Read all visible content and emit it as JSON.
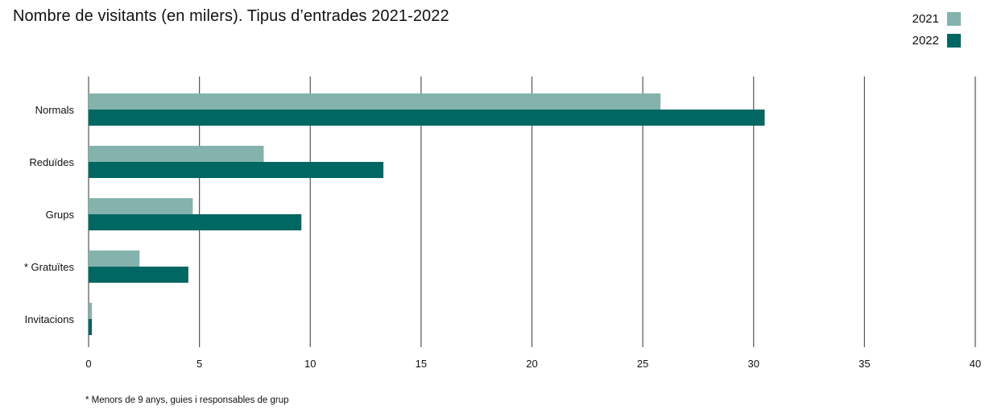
{
  "title": "Nombre de visitants (en milers). Tipus d’entrades 2021-2022",
  "footnote": "* Menors de 9 anys, guies i responsables de grup",
  "legend": [
    {
      "label": "2021",
      "color": "#84b3ae"
    },
    {
      "label": "2022",
      "color": "#006763"
    }
  ],
  "chart_data": {
    "type": "bar",
    "orientation": "horizontal",
    "categories": [
      "Normals",
      "Reduïdes",
      "Grups",
      "* Gratuïtes",
      "Invitacions"
    ],
    "series": [
      {
        "name": "2021",
        "color": "#84b3ae",
        "values": [
          25.8,
          7.9,
          4.7,
          2.3,
          0.15
        ]
      },
      {
        "name": "2022",
        "color": "#006763",
        "values": [
          30.5,
          13.3,
          9.6,
          4.5,
          0.15
        ]
      }
    ],
    "xlim": [
      0,
      40
    ],
    "xticks": [
      "0",
      "5",
      "10",
      "15",
      "20",
      "25",
      "30",
      "35",
      "40"
    ],
    "grid": true,
    "legend_position": "top-right"
  }
}
